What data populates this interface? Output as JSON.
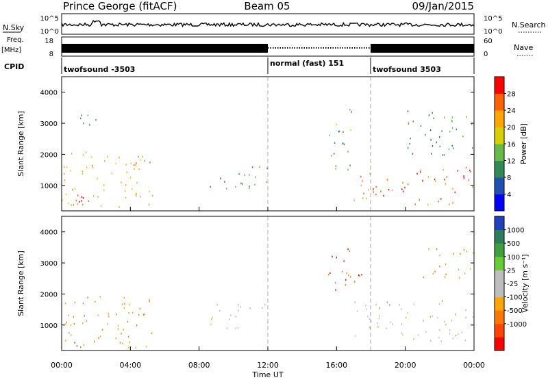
{
  "header": {
    "station": "Prince George (fitACF)",
    "beam": "Beam 05",
    "date": "09/Jan/2015"
  },
  "strip_labels": {
    "nsky": "N.Sky",
    "freq_top": "Freq.",
    "freq_unit": "[MHz]",
    "cpid": "CPID",
    "nsearch": "N.Search",
    "nave": "Nave"
  },
  "strip_ticks": {
    "nsky_left": [
      "10^5",
      "10^0"
    ],
    "nsky_right": [
      "10^5",
      "10^0"
    ],
    "freq_left": [
      "18",
      "8"
    ],
    "nave_right": [
      "60",
      "0"
    ]
  },
  "cpid_segments": [
    {
      "label": "twofsound -3503",
      "start_hour": 0
    },
    {
      "label": "normal (fast) 151",
      "start_hour": 12
    },
    {
      "label": "twofsound 3503",
      "start_hour": 18
    }
  ],
  "colors": {
    "power_scale": [
      "#0000ff",
      "#2050b0",
      "#2e8b57",
      "#66bb44",
      "#d8d000",
      "#ffa500",
      "#ff6000",
      "#ff0000"
    ],
    "velocity_scale": [
      "#2040c0",
      "#2e7d5a",
      "#3fa040",
      "#66cc33",
      "#bdbdbd",
      "#bdbdbd",
      "#ffa500",
      "#ff7700",
      "#ff4400",
      "#ff0000"
    ]
  },
  "chart_data": [
    {
      "type": "heatmap",
      "name": "power",
      "title": "",
      "xlabel": "Time UT",
      "ylabel": "Slant Range [km]",
      "x_range_hours": [
        0,
        24
      ],
      "ylim": [
        180,
        4500
      ],
      "x_ticks": [
        "00:00",
        "04:00",
        "08:00",
        "12:00",
        "16:00",
        "20:00",
        "00:00"
      ],
      "y_ticks": [
        1000,
        2000,
        3000,
        4000
      ],
      "colorbar": {
        "label": "Power [dB]",
        "ticks": [
          "4",
          "8",
          "12",
          "16",
          "20",
          "24",
          "28"
        ],
        "range": [
          0,
          32
        ]
      },
      "scatter_regions": [
        {
          "t": [
            0,
            5.3
          ],
          "r": [
            300,
            2200
          ],
          "value": 20
        },
        {
          "t": [
            0,
            2
          ],
          "r": [
            400,
            800
          ],
          "value": 30
        },
        {
          "t": [
            1,
            2.5
          ],
          "r": [
            2900,
            3500
          ],
          "value": 12
        },
        {
          "t": [
            8.5,
            12
          ],
          "r": [
            900,
            1700
          ],
          "value": 10
        },
        {
          "t": [
            15.5,
            17
          ],
          "r": [
            1500,
            3500
          ],
          "value": 12
        },
        {
          "t": [
            17,
            24
          ],
          "r": [
            400,
            1600
          ],
          "value": 26
        },
        {
          "t": [
            20,
            24
          ],
          "r": [
            2000,
            3500
          ],
          "value": 10
        }
      ]
    },
    {
      "type": "heatmap",
      "name": "velocity",
      "title": "",
      "xlabel": "Time UT",
      "ylabel": "Slant Range [km]",
      "x_range_hours": [
        0,
        24
      ],
      "ylim": [
        180,
        4500
      ],
      "x_ticks": [
        "00:00",
        "04:00",
        "08:00",
        "12:00",
        "16:00",
        "20:00",
        "00:00"
      ],
      "y_ticks": [
        1000,
        2000,
        3000,
        4000
      ],
      "colorbar": {
        "label": "Velocity [m s^-1]",
        "ticks": [
          "1000",
          "500",
          "100",
          "25",
          "-25",
          "-100",
          "-500",
          "-1000"
        ],
        "range": [
          -1000,
          1000
        ]
      },
      "scatter_regions": [
        {
          "t": [
            0,
            5.3
          ],
          "r": [
            300,
            2000
          ],
          "value": -100
        },
        {
          "t": [
            0,
            1
          ],
          "r": [
            300,
            800
          ],
          "value": 100
        },
        {
          "t": [
            8.5,
            12
          ],
          "r": [
            900,
            1700
          ],
          "value": 0
        },
        {
          "t": [
            15.5,
            17.5
          ],
          "r": [
            2000,
            3500
          ],
          "value": -500
        },
        {
          "t": [
            17,
            24
          ],
          "r": [
            500,
            1800
          ],
          "value": 0
        },
        {
          "t": [
            21,
            24
          ],
          "r": [
            2500,
            3500
          ],
          "value": -100
        }
      ]
    }
  ]
}
